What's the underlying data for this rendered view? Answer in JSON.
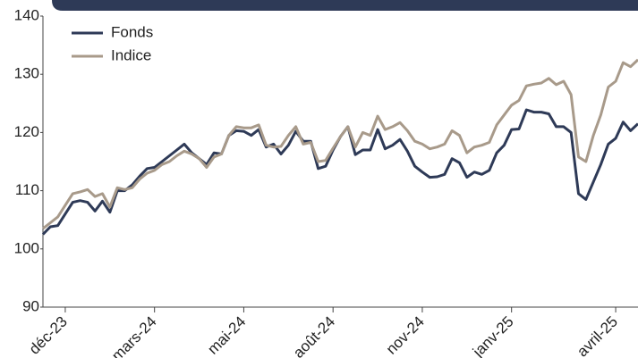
{
  "chart_data": {
    "type": "line",
    "categories": [
      null,
      null,
      null,
      "déc-23",
      null,
      null,
      null,
      null,
      null,
      null,
      null,
      null,
      null,
      null,
      null,
      "mars-24",
      null,
      null,
      null,
      null,
      null,
      null,
      null,
      null,
      null,
      null,
      null,
      "mai-24",
      null,
      null,
      null,
      null,
      null,
      null,
      null,
      null,
      null,
      null,
      null,
      "août-24",
      null,
      null,
      null,
      null,
      null,
      null,
      null,
      null,
      null,
      null,
      null,
      "nov-24",
      null,
      null,
      null,
      null,
      null,
      null,
      null,
      null,
      null,
      null,
      null,
      "janv-25",
      null,
      null,
      null,
      null,
      null,
      null,
      null,
      null,
      null,
      null,
      null,
      null,
      null,
      "avril-25",
      null,
      null,
      null
    ],
    "series": [
      {
        "name": "Fonds",
        "color": "#2e3a57",
        "values": [
          102.5,
          103.8,
          104,
          106,
          108,
          108.3,
          108,
          106.5,
          108.2,
          106.3,
          110,
          110,
          111,
          112.5,
          113.8,
          114,
          115,
          116,
          117,
          118,
          116.5,
          115.5,
          114.5,
          116.5,
          116.3,
          119.5,
          120.3,
          120.2,
          119.5,
          120.5,
          117.5,
          118,
          116.3,
          117.8,
          120.2,
          118.5,
          118.5,
          113.8,
          114.2,
          117,
          119.3,
          121,
          116.2,
          117,
          117,
          120.5,
          117.2,
          117.8,
          118.8,
          116.8,
          114.2,
          113.2,
          112.3,
          112.4,
          112.8,
          115.5,
          114.8,
          112.3,
          113.2,
          112.8,
          113.5,
          116.5,
          117.8,
          120.5,
          120.6,
          123.9,
          123.5,
          123.5,
          123.2,
          121,
          121,
          120,
          109.5,
          108.5,
          111.5,
          114.5,
          118,
          119,
          121.8,
          120.3,
          121.5
        ]
      },
      {
        "name": "Indice",
        "color": "#a89a8a",
        "values": [
          103.5,
          104.5,
          105.5,
          107.5,
          109.5,
          109.8,
          110.2,
          109,
          109.5,
          107.2,
          110.5,
          110.2,
          110.5,
          112,
          113,
          113.5,
          114.5,
          115,
          116,
          116.8,
          116.3,
          115.5,
          114,
          115.8,
          116.3,
          119.5,
          121,
          120.8,
          120.8,
          121.3,
          117.8,
          117.5,
          117.6,
          119.5,
          121,
          118,
          118.3,
          115,
          115.2,
          117.3,
          119.3,
          121,
          117.5,
          120,
          119.5,
          122.8,
          120.5,
          121,
          121.7,
          120.3,
          118.5,
          118,
          117.2,
          117.5,
          118,
          120.3,
          119.5,
          116.5,
          117.5,
          117.8,
          118.3,
          121.3,
          123,
          124.7,
          125.5,
          128,
          128.3,
          128.5,
          129.3,
          128.2,
          128.8,
          126.5,
          115.8,
          115,
          119.5,
          123,
          127.8,
          128.8,
          132,
          131.3,
          132.5
        ]
      }
    ],
    "ylim": [
      90,
      140
    ],
    "yticks": [
      90,
      100,
      110,
      120,
      130,
      140
    ]
  }
}
